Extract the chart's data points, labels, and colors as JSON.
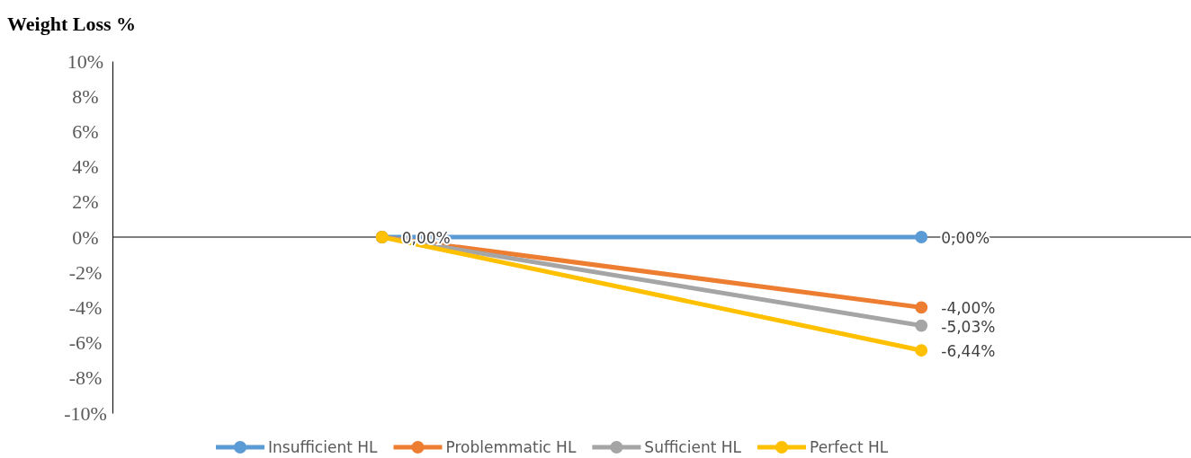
{
  "chart_data": {
    "type": "line",
    "title": "Weight Loss %",
    "categories": [
      null,
      null
    ],
    "series": [
      {
        "name": "Insufficient HL",
        "color": "#5b9bd5",
        "values": [
          0,
          0
        ],
        "value_labels": [
          "0,00%",
          "0,00%"
        ]
      },
      {
        "name": "Problemmatic HL",
        "color": "#ed7d31",
        "values": [
          0,
          -4.0
        ],
        "value_labels": [
          null,
          "-4,00%"
        ]
      },
      {
        "name": "Sufficient HL",
        "color": "#a5a5a5",
        "values": [
          0,
          -5.03
        ],
        "value_labels": [
          null,
          "-5,03%"
        ]
      },
      {
        "name": "Perfect HL",
        "color": "#ffc000",
        "values": [
          0,
          -6.44
        ],
        "value_labels": [
          null,
          "-6,44%"
        ]
      }
    ],
    "ylim": [
      -10,
      10
    ],
    "yticks": [
      {
        "value": 10,
        "label": "10%"
      },
      {
        "value": 8,
        "label": "8%"
      },
      {
        "value": 6,
        "label": "6%"
      },
      {
        "value": 4,
        "label": "4%"
      },
      {
        "value": 2,
        "label": "2%"
      },
      {
        "value": 0,
        "label": "0%"
      },
      {
        "value": -2,
        "label": "-2%"
      },
      {
        "value": -4,
        "label": "-4%"
      },
      {
        "value": -6,
        "label": "-6%"
      },
      {
        "value": -8,
        "label": "-8%"
      },
      {
        "value": -10,
        "label": "-10%"
      }
    ],
    "legend": "bottom",
    "marker": "circle",
    "line_style": "solid"
  }
}
